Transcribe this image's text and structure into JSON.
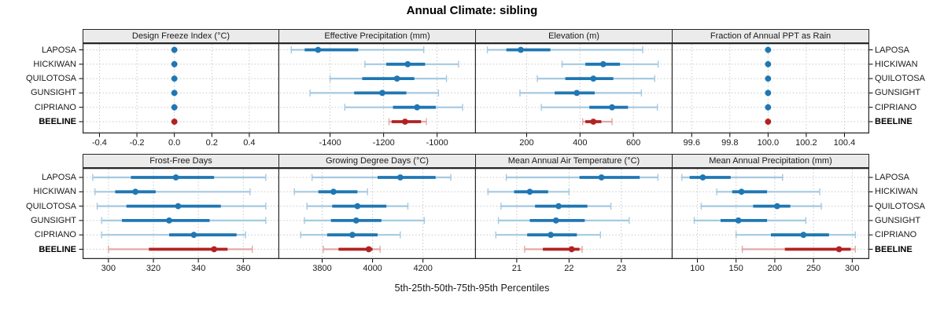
{
  "title": "Annual Climate: sibling",
  "footer_label": "5th-25th-50th-75th-95th Percentiles",
  "highlight_row": "BEELINE",
  "colors": {
    "site_main": "#1f77b4",
    "site_light": "#a4c9e1",
    "highlight_main": "#b22222",
    "highlight_light": "#e3a6a6",
    "strip_bg": "#ebebeb",
    "border": "#262626",
    "grid": "#c8c8c8"
  },
  "chart_data": {
    "type": "dot-interval",
    "subtype": "lattice percentile plot, 2 rows x 4 columns of panels",
    "percentiles": [
      5,
      25,
      50,
      75,
      95
    ],
    "categories": [
      "LAPOSA",
      "HICKIWAN",
      "QUILOTOSA",
      "GUNSIGHT",
      "CIPRIANO",
      "BEELINE"
    ],
    "legend_position": "none",
    "grid": "dotted",
    "panels": [
      {
        "title": "Design Freeze Index (°C)",
        "grid_row": 0,
        "grid_col": 0,
        "xlim": [
          -0.49,
          0.56
        ],
        "tick_values": [
          -0.4,
          -0.2,
          0,
          0.2,
          0.4
        ],
        "tick_labels": [
          "-0.4",
          "-0.2",
          "0.0",
          "0.2",
          "0.4"
        ],
        "series": [
          {
            "name": "LAPOSA",
            "values": [
              0,
              0,
              0,
              0,
              0
            ]
          },
          {
            "name": "HICKIWAN",
            "values": [
              0,
              0,
              0,
              0,
              0
            ]
          },
          {
            "name": "QUILOTOSA",
            "values": [
              0,
              0,
              0,
              0,
              0
            ]
          },
          {
            "name": "GUNSIGHT",
            "values": [
              0,
              0,
              0,
              0,
              0
            ]
          },
          {
            "name": "CIPRIANO",
            "values": [
              0,
              0,
              0,
              0,
              0
            ]
          },
          {
            "name": "BEELINE",
            "values": [
              0,
              0,
              0,
              0,
              0
            ]
          }
        ]
      },
      {
        "title": "Effective Precipitation (mm)",
        "grid_row": 0,
        "grid_col": 1,
        "xlim": [
          -1590,
          -855
        ],
        "tick_values": [
          -1400,
          -1200,
          -1000
        ],
        "tick_labels": [
          "-1400",
          "-1200",
          "-1000"
        ],
        "series": [
          {
            "name": "LAPOSA",
            "values": [
              -1545,
              -1495,
              -1445,
              -1295,
              -1050
            ]
          },
          {
            "name": "HICKIWAN",
            "values": [
              -1270,
              -1190,
              -1110,
              -1045,
              -920
            ]
          },
          {
            "name": "QUILOTOSA",
            "values": [
              -1400,
              -1280,
              -1150,
              -1085,
              -965
            ]
          },
          {
            "name": "GUNSIGHT",
            "values": [
              -1475,
              -1310,
              -1205,
              -1115,
              -995
            ]
          },
          {
            "name": "CIPRIANO",
            "values": [
              -1345,
              -1165,
              -1075,
              -1005,
              -905
            ]
          },
          {
            "name": "BEELINE",
            "values": [
              -1180,
              -1170,
              -1120,
              -1060,
              -1040
            ]
          }
        ]
      },
      {
        "title": "Elevation (m)",
        "grid_row": 0,
        "grid_col": 2,
        "xlim": [
          10,
          747
        ],
        "tick_values": [
          200,
          400,
          600
        ],
        "tick_labels": [
          "200",
          "400",
          "600"
        ],
        "series": [
          {
            "name": "LAPOSA",
            "values": [
              53,
              124,
              178,
              289,
              635
            ]
          },
          {
            "name": "HICKIWAN",
            "values": [
              333,
              420,
              487,
              550,
              693
            ]
          },
          {
            "name": "QUILOTOSA",
            "values": [
              240,
              345,
              450,
              525,
              680
            ]
          },
          {
            "name": "GUNSIGHT",
            "values": [
              175,
              305,
              388,
              455,
              630
            ]
          },
          {
            "name": "CIPRIANO",
            "values": [
              255,
              435,
              520,
              580,
              690
            ]
          },
          {
            "name": "BEELINE",
            "values": [
              410,
              420,
              450,
              480,
              520
            ]
          }
        ]
      },
      {
        "title": "Fraction of Annual PPT as Rain",
        "grid_row": 0,
        "grid_col": 3,
        "xlim": [
          99.5,
          100.53
        ],
        "tick_values": [
          99.6,
          99.8,
          100.0,
          100.2,
          100.4
        ],
        "tick_labels": [
          "99.6",
          "99.8",
          "100.0",
          "100.2",
          "100.4"
        ],
        "series": [
          {
            "name": "LAPOSA",
            "values": [
              100,
              100,
              100,
              100,
              100
            ]
          },
          {
            "name": "HICKIWAN",
            "values": [
              100,
              100,
              100,
              100,
              100
            ]
          },
          {
            "name": "QUILOTOSA",
            "values": [
              100,
              100,
              100,
              100,
              100
            ]
          },
          {
            "name": "GUNSIGHT",
            "values": [
              100,
              100,
              100,
              100,
              100
            ]
          },
          {
            "name": "CIPRIANO",
            "values": [
              100,
              100,
              100,
              100,
              100
            ]
          },
          {
            "name": "BEELINE",
            "values": [
              100,
              100,
              100,
              100,
              100
            ]
          }
        ]
      },
      {
        "title": "Frost-Free Days",
        "grid_row": 1,
        "grid_col": 0,
        "xlim": [
          288.5,
          376
        ],
        "tick_values": [
          300,
          320,
          340,
          360
        ],
        "tick_labels": [
          "300",
          "320",
          "340",
          "360"
        ],
        "series": [
          {
            "name": "LAPOSA",
            "values": [
              293,
              310,
              330,
              347,
              370
            ]
          },
          {
            "name": "HICKIWAN",
            "values": [
              294,
              303,
              312,
              321,
              363
            ]
          },
          {
            "name": "QUILOTOSA",
            "values": [
              295,
              308,
              331,
              350,
              370
            ]
          },
          {
            "name": "GUNSIGHT",
            "values": [
              297,
              306,
              327,
              345,
              370
            ]
          },
          {
            "name": "CIPRIANO",
            "values": [
              297,
              327,
              338,
              357,
              361
            ]
          },
          {
            "name": "BEELINE",
            "values": [
              300,
              318,
              347,
              353,
              364
            ]
          }
        ]
      },
      {
        "title": "Growing Degree Days (°C)",
        "grid_row": 1,
        "grid_col": 1,
        "xlim": [
          3630,
          4410
        ],
        "tick_values": [
          3800,
          4000,
          4200
        ],
        "tick_labels": [
          "3800",
          "4000",
          "4200"
        ],
        "series": [
          {
            "name": "LAPOSA",
            "values": [
              3760,
              4020,
              4110,
              4250,
              4310
            ]
          },
          {
            "name": "HICKIWAN",
            "values": [
              3690,
              3785,
              3845,
              3940,
              3980
            ]
          },
          {
            "name": "QUILOTOSA",
            "values": [
              3740,
              3840,
              3940,
              4055,
              4140
            ]
          },
          {
            "name": "GUNSIGHT",
            "values": [
              3730,
              3835,
              3935,
              4035,
              4205
            ]
          },
          {
            "name": "CIPRIANO",
            "values": [
              3715,
              3820,
              3920,
              4020,
              4110
            ]
          },
          {
            "name": "BEELINE",
            "values": [
              3805,
              3865,
              3985,
              4000,
              4030
            ]
          }
        ]
      },
      {
        "title": "Mean Annual Air Temperature (°C)",
        "grid_row": 1,
        "grid_col": 2,
        "xlim": [
          20.22,
          23.98
        ],
        "tick_values": [
          21,
          22,
          23
        ],
        "tick_labels": [
          "21",
          "22",
          "23"
        ],
        "series": [
          {
            "name": "LAPOSA",
            "values": [
              20.8,
              22.2,
              22.62,
              23.35,
              23.7
            ]
          },
          {
            "name": "HICKIWAN",
            "values": [
              20.45,
              20.95,
              21.25,
              21.6,
              22.0
            ]
          },
          {
            "name": "QUILOTOSA",
            "values": [
              20.7,
              21.35,
              21.8,
              22.35,
              22.8
            ]
          },
          {
            "name": "GUNSIGHT",
            "values": [
              20.65,
              21.25,
              21.75,
              22.3,
              23.15
            ]
          },
          {
            "name": "CIPRIANO",
            "values": [
              20.6,
              21.2,
              21.65,
              22.15,
              22.6
            ]
          },
          {
            "name": "BEELINE",
            "values": [
              21.15,
              21.5,
              22.05,
              22.2,
              22.25
            ]
          }
        ]
      },
      {
        "title": "Mean Annual Precipitation (mm)",
        "grid_row": 1,
        "grid_col": 3,
        "xlim": [
          68,
          322
        ],
        "tick_values": [
          100,
          150,
          200,
          250,
          300
        ],
        "tick_labels": [
          "100",
          "150",
          "200",
          "250",
          "300"
        ],
        "series": [
          {
            "name": "LAPOSA",
            "values": [
              80,
              90,
              107,
              143,
              210
            ]
          },
          {
            "name": "HICKIWAN",
            "values": [
              125,
              145,
              157,
              190,
              258
            ]
          },
          {
            "name": "QUILOTOSA",
            "values": [
              105,
              172,
              203,
              220,
              260
            ]
          },
          {
            "name": "GUNSIGHT",
            "values": [
              96,
              130,
              153,
              190,
              240
            ]
          },
          {
            "name": "CIPRIANO",
            "values": [
              150,
              195,
              237,
              270,
              304
            ]
          },
          {
            "name": "BEELINE",
            "values": [
              158,
              213,
              283,
              298,
              304
            ]
          }
        ]
      }
    ]
  }
}
